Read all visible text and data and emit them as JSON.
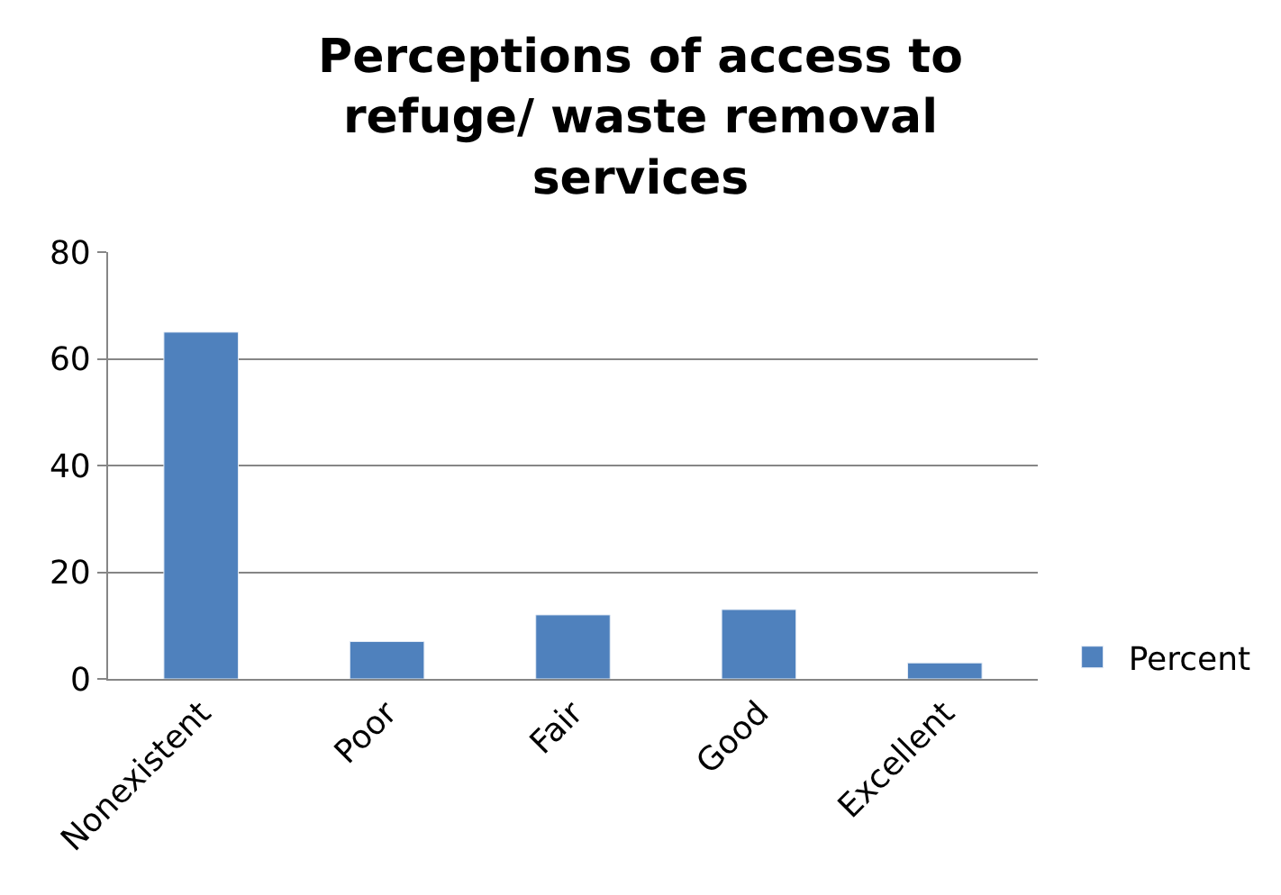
{
  "chart_data": {
    "type": "bar",
    "title": "Perceptions of access to refuge/ waste removal services",
    "categories": [
      "Nonexistent",
      "Poor",
      "Fair",
      "Good",
      "Excellent"
    ],
    "series": [
      {
        "name": "Percent",
        "color": "#4f81bd",
        "values": [
          65,
          7,
          12,
          13,
          3
        ]
      }
    ],
    "ylim": [
      0,
      80
    ],
    "yticks": [
      0,
      20,
      40,
      60,
      80
    ],
    "grid": "y",
    "legend": "right"
  }
}
